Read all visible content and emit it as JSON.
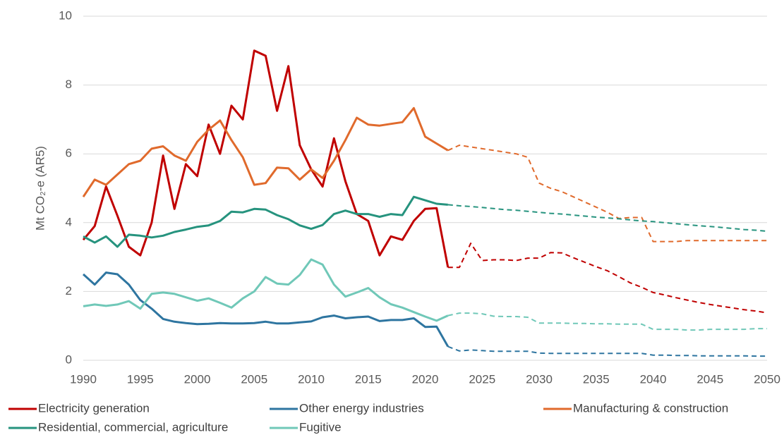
{
  "chart_data": {
    "type": "line",
    "y_label": "Mt CO₂-e (AR5)",
    "x": [
      1990,
      1991,
      1992,
      1993,
      1994,
      1995,
      1996,
      1997,
      1998,
      1999,
      2000,
      2001,
      2002,
      2003,
      2004,
      2005,
      2006,
      2007,
      2008,
      2009,
      2010,
      2011,
      2012,
      2013,
      2014,
      2015,
      2016,
      2017,
      2018,
      2019,
      2020,
      2021,
      2022,
      2023,
      2024,
      2025,
      2026,
      2027,
      2028,
      2029,
      2030,
      2031,
      2032,
      2033,
      2034,
      2035,
      2036,
      2037,
      2038,
      2039,
      2040,
      2041,
      2042,
      2043,
      2044,
      2045,
      2046,
      2047,
      2048,
      2049,
      2050
    ],
    "xlim": [
      1990,
      2050
    ],
    "xticks": [
      1990,
      1995,
      2000,
      2005,
      2010,
      2015,
      2020,
      2025,
      2030,
      2035,
      2040,
      2045,
      2050
    ],
    "ylim": [
      0,
      10
    ],
    "yticks": [
      0,
      2,
      4,
      6,
      8,
      10
    ],
    "grid": true,
    "dashed_from": 2022,
    "series": [
      {
        "name": "Electricity generation",
        "color": "#c00000",
        "values": [
          3.5,
          3.9,
          5.05,
          4.2,
          3.3,
          3.05,
          4.0,
          5.95,
          4.4,
          5.7,
          5.35,
          6.85,
          6.0,
          7.4,
          7.0,
          9.0,
          8.85,
          7.25,
          8.55,
          6.25,
          5.55,
          5.05,
          6.45,
          5.2,
          4.25,
          4.05,
          3.05,
          3.6,
          3.5,
          4.05,
          4.4,
          4.42,
          2.7,
          2.7,
          3.4,
          2.9,
          2.92,
          2.92,
          2.9,
          2.97,
          2.97,
          3.13,
          3.12,
          2.98,
          2.85,
          2.72,
          2.6,
          2.43,
          2.25,
          2.12,
          1.97,
          1.9,
          1.82,
          1.75,
          1.68,
          1.62,
          1.57,
          1.52,
          1.47,
          1.43,
          1.38
        ]
      },
      {
        "name": "Other energy industries",
        "color": "#2e75a0",
        "values": [
          2.5,
          2.2,
          2.55,
          2.5,
          2.2,
          1.75,
          1.5,
          1.2,
          1.12,
          1.08,
          1.05,
          1.06,
          1.08,
          1.07,
          1.07,
          1.08,
          1.12,
          1.07,
          1.07,
          1.1,
          1.13,
          1.25,
          1.3,
          1.22,
          1.25,
          1.27,
          1.14,
          1.17,
          1.17,
          1.22,
          0.97,
          0.98,
          0.4,
          0.27,
          0.3,
          0.28,
          0.26,
          0.26,
          0.26,
          0.26,
          0.21,
          0.2,
          0.2,
          0.2,
          0.2,
          0.2,
          0.2,
          0.2,
          0.2,
          0.2,
          0.15,
          0.15,
          0.14,
          0.14,
          0.13,
          0.13,
          0.13,
          0.13,
          0.13,
          0.12,
          0.12
        ]
      },
      {
        "name": "Manufacturing & construction",
        "color": "#e06a2c",
        "values": [
          4.75,
          5.25,
          5.1,
          5.4,
          5.7,
          5.8,
          6.15,
          6.22,
          5.95,
          5.8,
          6.35,
          6.7,
          6.97,
          6.4,
          5.9,
          5.1,
          5.15,
          5.6,
          5.58,
          5.25,
          5.55,
          5.3,
          5.8,
          6.4,
          7.05,
          6.85,
          6.82,
          6.87,
          6.92,
          7.33,
          6.5,
          6.3,
          6.1,
          6.25,
          6.2,
          6.15,
          6.1,
          6.05,
          6.0,
          5.9,
          5.15,
          5.0,
          4.9,
          4.75,
          4.6,
          4.45,
          4.3,
          4.12,
          4.15,
          4.15,
          3.45,
          3.45,
          3.45,
          3.48,
          3.48,
          3.48,
          3.48,
          3.48,
          3.48,
          3.48,
          3.48
        ]
      },
      {
        "name": "Residential, commercial, agriculture",
        "color": "#26937e",
        "values": [
          3.6,
          3.42,
          3.6,
          3.3,
          3.65,
          3.62,
          3.57,
          3.62,
          3.73,
          3.8,
          3.88,
          3.92,
          4.05,
          4.32,
          4.3,
          4.4,
          4.38,
          4.22,
          4.1,
          3.92,
          3.82,
          3.93,
          4.25,
          4.35,
          4.25,
          4.25,
          4.17,
          4.25,
          4.22,
          4.75,
          4.65,
          4.55,
          4.52,
          4.49,
          4.47,
          4.44,
          4.41,
          4.38,
          4.36,
          4.33,
          4.3,
          4.27,
          4.25,
          4.22,
          4.19,
          4.16,
          4.14,
          4.11,
          4.08,
          4.05,
          4.03,
          4.0,
          3.97,
          3.94,
          3.91,
          3.89,
          3.86,
          3.83,
          3.8,
          3.78,
          3.75
        ]
      },
      {
        "name": "Fugitive",
        "color": "#70c8b8",
        "values": [
          1.57,
          1.62,
          1.58,
          1.62,
          1.72,
          1.5,
          1.93,
          1.97,
          1.93,
          1.83,
          1.73,
          1.8,
          1.67,
          1.53,
          1.8,
          2.0,
          2.42,
          2.23,
          2.2,
          2.48,
          2.93,
          2.78,
          2.2,
          1.85,
          1.97,
          2.1,
          1.83,
          1.63,
          1.53,
          1.4,
          1.27,
          1.15,
          1.3,
          1.37,
          1.37,
          1.35,
          1.28,
          1.27,
          1.27,
          1.25,
          1.08,
          1.08,
          1.08,
          1.07,
          1.07,
          1.06,
          1.06,
          1.05,
          1.05,
          1.05,
          0.9,
          0.9,
          0.9,
          0.88,
          0.88,
          0.9,
          0.9,
          0.9,
          0.9,
          0.92,
          0.92
        ]
      }
    ]
  }
}
